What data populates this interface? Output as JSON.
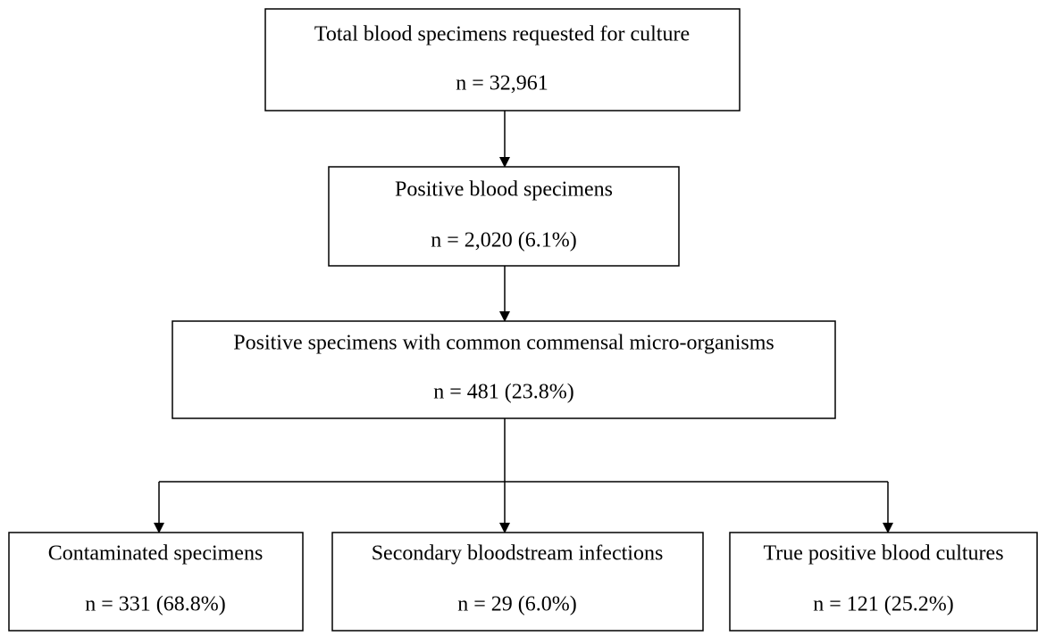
{
  "nodes": [
    {
      "label": "Total blood specimens requested for culture",
      "count": "n = 32,961"
    },
    {
      "label": "Positive blood specimens",
      "count": "n = 2,020 (6.1%)"
    },
    {
      "label": "Positive specimens with common commensal micro-organisms",
      "count": "n = 481 (23.8%)"
    },
    {
      "label": "Contaminated specimens",
      "count": "n = 331 (68.8%)"
    },
    {
      "label": "Secondary bloodstream infections",
      "count": "n = 29 (6.0%)"
    },
    {
      "label": "True positive blood cultures",
      "count": "n = 121 (25.2%)"
    }
  ]
}
